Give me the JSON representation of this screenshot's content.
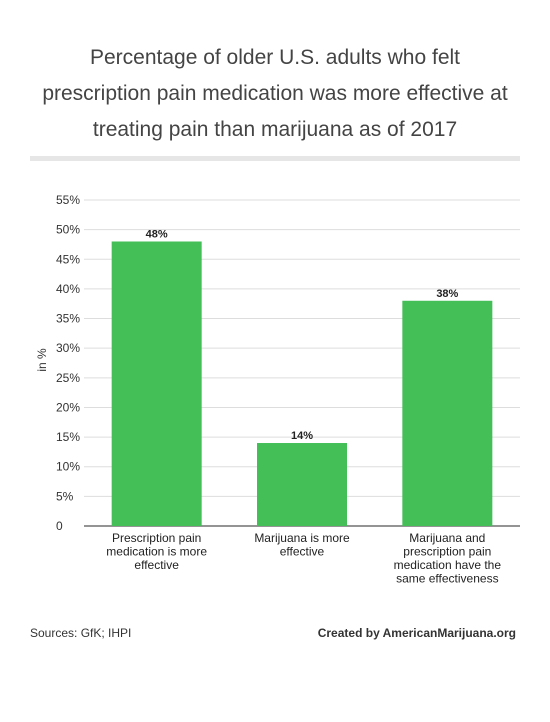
{
  "title_lines": [
    "Percentage of older U.S. adults who felt",
    "prescription pain medication was more effective at",
    "treating pain than marijuana as of 2017"
  ],
  "footer": {
    "sources": "Sources: GfK; IHPI",
    "credit": "Created by AmericanMarijuana.org"
  },
  "chart_data": {
    "type": "bar",
    "title": "Percentage of older U.S. adults who felt prescription pain medication was more effective at treating pain than marijuana as of 2017",
    "ylabel": "in %",
    "xlabel": "",
    "ylim": [
      0,
      55
    ],
    "yticks": [
      0,
      5,
      10,
      15,
      20,
      25,
      30,
      35,
      40,
      45,
      50,
      55
    ],
    "ytick_labels": [
      "0",
      "5%",
      "10%",
      "15%",
      "20%",
      "25%",
      "30%",
      "35%",
      "40%",
      "45%",
      "50%",
      "55%"
    ],
    "grid": true,
    "bar_color": "#44bf58",
    "categories": [
      [
        "Prescription pain",
        "medication is more",
        "effective"
      ],
      [
        "Marijuana is more",
        "effective"
      ],
      [
        "Marijuana and",
        "prescription pain",
        "medication have the",
        "same effectiveness"
      ]
    ],
    "values": [
      48,
      14,
      38
    ],
    "data_labels": [
      "48%",
      "14%",
      "38%"
    ]
  }
}
